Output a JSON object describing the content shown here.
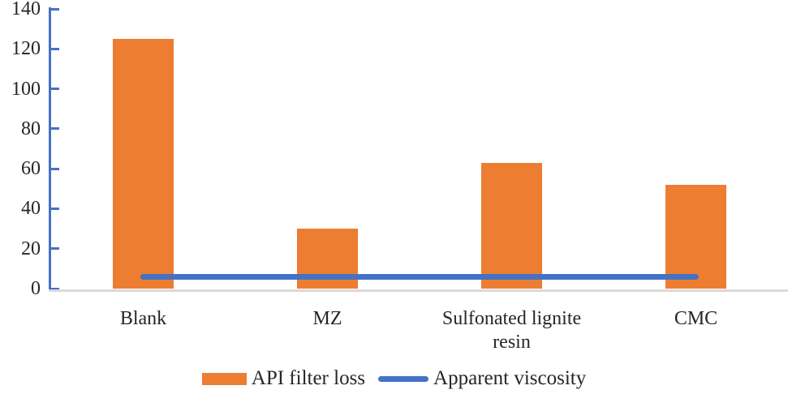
{
  "chart_data": {
    "type": "bar",
    "categories": [
      "Blank",
      "MZ",
      "Sulfonated lignite resin",
      "CMC"
    ],
    "series": [
      {
        "name": "API filter loss",
        "type": "bar",
        "color": "#ED7D31",
        "values": [
          125,
          30,
          63,
          52
        ]
      },
      {
        "name": "Apparent viscosity",
        "type": "line",
        "color": "#4472C4",
        "values": [
          6,
          6,
          6,
          6
        ]
      }
    ],
    "title": "",
    "xlabel": "",
    "ylabel": "",
    "ylim": [
      0,
      140
    ],
    "yticks": [
      0,
      20,
      40,
      60,
      80,
      100,
      120,
      140
    ],
    "grid": false,
    "legend_position": "bottom",
    "colors": {
      "axis": "#4472C4",
      "baseline": "#D9D9D9",
      "text": "#262626",
      "background": "#FFFFFF"
    }
  }
}
